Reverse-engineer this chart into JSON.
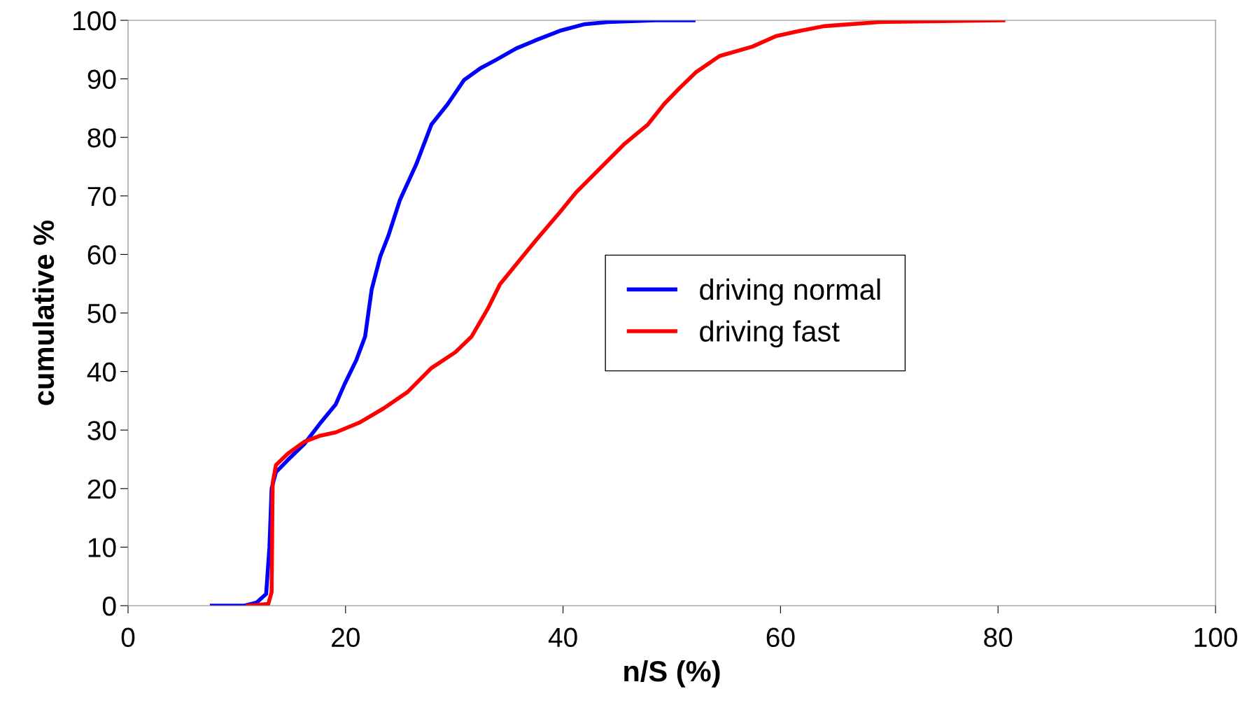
{
  "chart_data": {
    "type": "line",
    "xlabel": "n/S (%)",
    "ylabel": "cumulative %",
    "xlim": [
      0,
      100
    ],
    "ylim": [
      0,
      100
    ],
    "xticks": [
      0,
      20,
      40,
      60,
      80,
      100
    ],
    "yticks": [
      0,
      10,
      20,
      30,
      40,
      50,
      60,
      70,
      80,
      90,
      100
    ],
    "grid": false,
    "legend": "center right",
    "marker": "none",
    "line_style": "solid",
    "series": [
      {
        "name": "driving normal",
        "color": "#0000ff",
        "x": [
          7.7,
          10.7,
          11.8,
          12.7,
          13.0,
          13.2,
          13.6,
          14.7,
          16.2,
          17.6,
          19.1,
          19.9,
          21.0,
          21.8,
          22.4,
          23.2,
          23.9,
          25.0,
          26.5,
          27.9,
          29.4,
          30.9,
          32.4,
          33.8,
          35.7,
          37.5,
          39.7,
          41.9,
          44.1,
          48.5,
          52.0
        ],
        "values": [
          0,
          0,
          0.5,
          2,
          10,
          20,
          22.8,
          24.9,
          27.6,
          31,
          34.4,
          37.8,
          42,
          46,
          54,
          59.7,
          63,
          69.3,
          75.4,
          82.2,
          85.7,
          89.8,
          91.8,
          93.2,
          95.2,
          96.6,
          98.2,
          99.3,
          99.7,
          100,
          100
        ]
      },
      {
        "name": "driving fast",
        "color": "#ff0000",
        "x": [
          11.0,
          12.9,
          13.2,
          13.3,
          13.6,
          14.7,
          16.2,
          17.6,
          19.1,
          21.3,
          23.5,
          25.7,
          27.9,
          30.1,
          31.6,
          33.1,
          34.2,
          36.0,
          37.5,
          39.7,
          41.2,
          43.4,
          45.6,
          47.8,
          49.3,
          50.7,
          52.2,
          54.4,
          57.4,
          59.6,
          61.8,
          64.0,
          69.1,
          80.5
        ],
        "values": [
          0,
          0.3,
          2.3,
          21,
          24,
          26,
          28,
          29,
          29.6,
          31.3,
          33.7,
          36.5,
          40.6,
          43.3,
          46,
          50.8,
          54.9,
          59,
          62.4,
          67.2,
          70.6,
          74.7,
          78.8,
          82.2,
          85.7,
          88.4,
          91.1,
          93.9,
          95.5,
          97.3,
          98.2,
          99,
          99.7,
          100
        ]
      }
    ]
  }
}
